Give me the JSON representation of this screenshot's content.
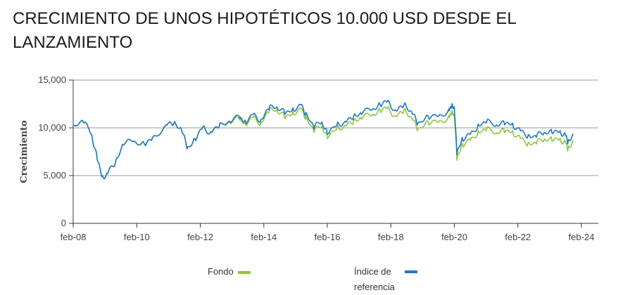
{
  "title": "CRECIMIENTO DE UNOS HIPOTÉTICOS 10.000 USD DESDE EL LANZAMIENTO",
  "colors": {
    "fondo": "#8cc63f",
    "referencia": "#1f78c1",
    "grid": "#999999",
    "axis": "#333333"
  },
  "chart_data": {
    "type": "line",
    "ylabel": "Crecimiento",
    "xlabel": "",
    "ylim": [
      0,
      15000
    ],
    "xlim": [
      "2008-02",
      "2023-11"
    ],
    "yticks": [
      "0",
      "5,000",
      "10,000",
      "15,000"
    ],
    "ytick_values": [
      0,
      5000,
      10000,
      15000
    ],
    "xticks": [
      "feb-08",
      "feb-10",
      "feb-12",
      "feb-14",
      "feb-16",
      "feb-18",
      "feb-20",
      "feb-22",
      "feb-24"
    ],
    "xtick_dates": [
      "2008-02",
      "2010-02",
      "2012-02",
      "2014-02",
      "2016-02",
      "2018-02",
      "2020-02",
      "2022-02",
      "2024-02"
    ],
    "grid": true,
    "legend_position": "bottom",
    "x": [
      "2008-02",
      "2008-06",
      "2008-09",
      "2008-11",
      "2009-01",
      "2009-03",
      "2009-06",
      "2009-09",
      "2010-01",
      "2010-05",
      "2010-08",
      "2011-01",
      "2011-04",
      "2011-07",
      "2011-09",
      "2011-12",
      "2012-03",
      "2012-06",
      "2012-09",
      "2013-01",
      "2013-05",
      "2013-07",
      "2013-10",
      "2014-01",
      "2014-04",
      "2014-07",
      "2014-10",
      "2015-01",
      "2015-04",
      "2015-06",
      "2015-09",
      "2015-12",
      "2016-02",
      "2016-06",
      "2016-09",
      "2016-12",
      "2017-03",
      "2017-07",
      "2017-10",
      "2018-01",
      "2018-04",
      "2018-07",
      "2018-10",
      "2018-12",
      "2019-04",
      "2019-08",
      "2019-12",
      "2020-01",
      "2020-02",
      "2020-03",
      "2020-05",
      "2020-08",
      "2020-11",
      "2021-02",
      "2021-06",
      "2021-09",
      "2021-12",
      "2022-03",
      "2022-06",
      "2022-09",
      "2022-12",
      "2023-03",
      "2023-06",
      "2023-08",
      "2023-09",
      "2023-11"
    ],
    "series": [
      {
        "name": "Fondo",
        "values": [
          10200,
          10500,
          9300,
          6800,
          5000,
          5200,
          6400,
          8200,
          8600,
          8300,
          9000,
          10300,
          10400,
          9800,
          7800,
          8900,
          10100,
          9600,
          10000,
          10600,
          10800,
          10600,
          11100,
          10600,
          11600,
          11900,
          11000,
          11700,
          12000,
          11200,
          9500,
          10200,
          8900,
          10200,
          10200,
          10800,
          10900,
          11300,
          11800,
          12200,
          11200,
          11800,
          11000,
          9700,
          10700,
          10600,
          11300,
          11400,
          11500,
          6600,
          8400,
          8700,
          9700,
          9700,
          9500,
          9500,
          9700,
          8900,
          8500,
          8300,
          8800,
          8600,
          8900,
          8500,
          7900,
          8600
        ]
      },
      {
        "name": "Índice de referencia",
        "values": [
          10200,
          10500,
          9300,
          6800,
          5000,
          5200,
          6400,
          8200,
          8600,
          8300,
          9000,
          10300,
          10400,
          9800,
          7800,
          8900,
          10100,
          9600,
          10000,
          10700,
          11000,
          10800,
          11400,
          10900,
          11900,
          12200,
          11400,
          12100,
          12400,
          11600,
          9900,
          10600,
          9300,
          10600,
          10600,
          11300,
          11400,
          11900,
          12400,
          12900,
          11800,
          12400,
          11600,
          10300,
          11300,
          11200,
          12000,
          12100,
          12200,
          7200,
          9000,
          9300,
          10400,
          10500,
          10300,
          10300,
          10500,
          9700,
          9300,
          9000,
          9500,
          9400,
          9700,
          9300,
          8600,
          9300
        ]
      }
    ]
  },
  "legend": [
    {
      "label": "Fondo",
      "color": "#8cc63f"
    },
    {
      "label": "Índice de referencia",
      "color": "#1f78c1"
    }
  ]
}
